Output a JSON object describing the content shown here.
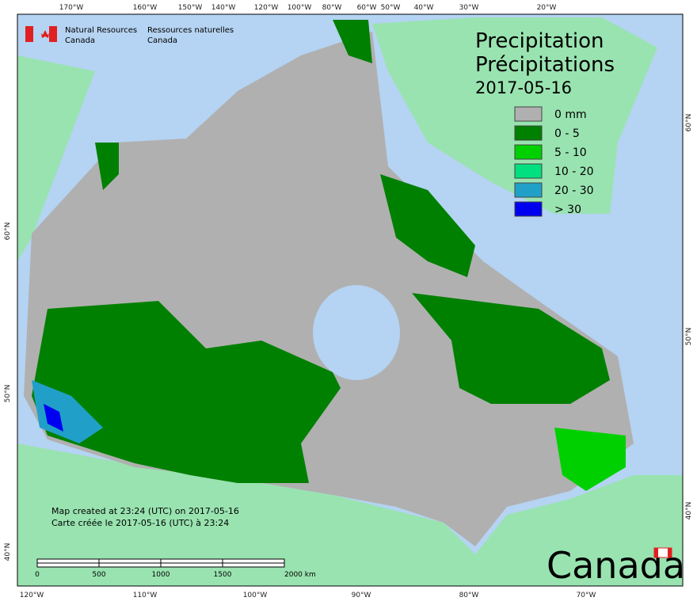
{
  "agency": {
    "en": [
      "Natural Resources",
      "Canada"
    ],
    "fr": [
      "Ressources naturelles",
      "Canada"
    ]
  },
  "title": {
    "en": "Precipitation",
    "fr": "Précipitations",
    "date": "2017-05-16"
  },
  "legend": [
    {
      "label": "0 mm",
      "color": "#b0b0b0"
    },
    {
      "label": "0 - 5",
      "color": "#008000"
    },
    {
      "label": "5 - 10",
      "color": "#00d000"
    },
    {
      "label": "10 - 20",
      "color": "#00e080"
    },
    {
      "label": "20 - 30",
      "color": "#20a0c8"
    },
    {
      "label": "> 30",
      "color": "#0000f0"
    }
  ],
  "footer": {
    "en": "Map created at 23:24 (UTC) on 2017-05-16",
    "fr": "Carte créée le 2017-05-16 (UTC) à 23:24"
  },
  "scale": [
    "0",
    "500",
    "1000",
    "1500",
    "2000 km"
  ],
  "wordmark": "Canada",
  "graticule": {
    "top": [
      "170°W",
      "160°W",
      "150°W",
      "140°W",
      "120°W",
      "100°W",
      "80°W",
      "60°W",
      "50°W",
      "40°W",
      "30°W",
      "20°W"
    ],
    "bottom": [
      "120°W",
      "110°W",
      "100°W",
      "90°W",
      "80°W",
      "70°W"
    ],
    "left": [
      "60°N",
      "50°N",
      "40°N"
    ],
    "right": [
      "60°N",
      "50°N",
      "40°N"
    ]
  }
}
